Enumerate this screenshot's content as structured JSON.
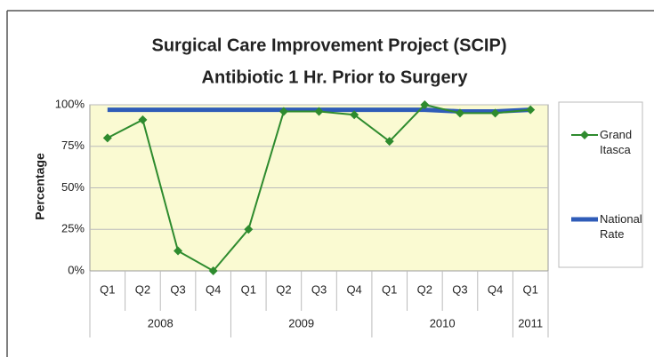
{
  "chart_data": {
    "type": "line",
    "title": [
      "Surgical Care Improvement Project (SCIP)",
      "Antibiotic 1 Hr. Prior to Surgery"
    ],
    "y_label": "Percentage",
    "category_groups": [
      {
        "label": "2008",
        "categories": [
          "Q1",
          "Q2",
          "Q3",
          "Q4"
        ]
      },
      {
        "label": "2009",
        "categories": [
          "Q1",
          "Q2",
          "Q3",
          "Q4"
        ]
      },
      {
        "label": "2010",
        "categories": [
          "Q1",
          "Q2",
          "Q3",
          "Q4"
        ]
      },
      {
        "label": "2011",
        "categories": [
          "Q1"
        ]
      }
    ],
    "series": [
      {
        "name": "Grand Itasca",
        "color": "#2e8b2e",
        "marker": "diamond",
        "values": [
          80,
          91,
          12,
          0,
          25,
          96,
          96,
          94,
          78,
          100,
          95,
          95,
          97
        ]
      },
      {
        "name": "National Rate",
        "color": "#2f5cb8",
        "values": [
          97,
          97,
          97,
          97,
          97,
          97,
          97,
          97,
          97,
          97,
          96,
          96,
          97
        ]
      }
    ],
    "ylim": [
      0,
      100
    ],
    "yticks": [
      {
        "value": 0,
        "label": "0%"
      },
      {
        "value": 25,
        "label": "25%"
      },
      {
        "value": 50,
        "label": "50%"
      },
      {
        "value": 75,
        "label": "75%"
      },
      {
        "value": 100,
        "label": "100%"
      }
    ],
    "grid": true,
    "legend": "right"
  }
}
